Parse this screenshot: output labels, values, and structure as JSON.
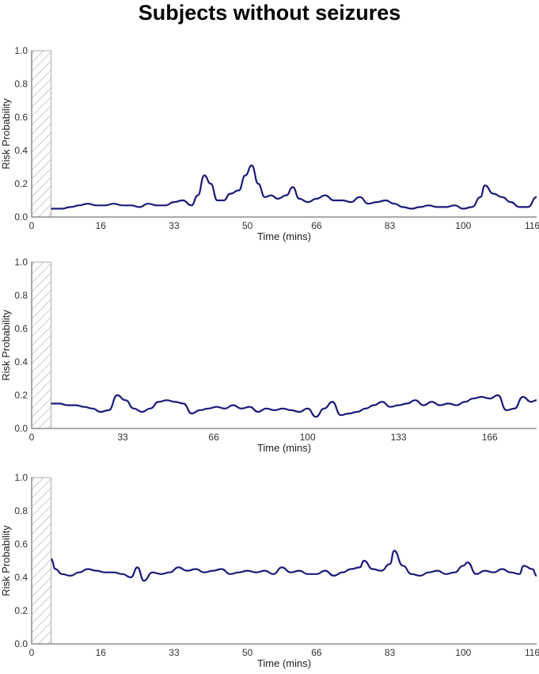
{
  "title": "Subjects without seizures",
  "colors": {
    "line": "#1a1a7a",
    "axis": "#555555",
    "hatch": "#999999"
  },
  "chart_data": [
    {
      "type": "line",
      "xlabel": "Time (mins)",
      "ylabel": "Risk Probability",
      "xlim": [
        0,
        117
      ],
      "ylim": [
        0,
        1.0
      ],
      "hatched_region": [
        0,
        4.5
      ],
      "xticks": [
        0,
        16,
        33,
        50,
        66,
        83,
        100,
        116
      ],
      "yticks": [
        0.0,
        0.2,
        0.4,
        0.6,
        0.8,
        1.0
      ],
      "series": [
        {
          "name": "Risk Probability",
          "x": [
            4.5,
            7,
            9,
            11,
            13,
            15,
            17,
            19,
            21,
            23,
            25,
            27,
            29,
            31,
            33,
            35,
            37,
            38.5,
            40,
            41.5,
            43,
            44.5,
            46,
            48,
            49.5,
            51,
            52.5,
            54,
            55.5,
            57,
            59,
            60.5,
            62,
            64,
            66,
            68,
            70,
            72,
            74,
            76,
            78,
            80,
            82,
            84,
            86,
            88,
            90,
            92,
            94,
            96,
            98,
            100,
            102,
            104,
            105,
            107,
            109,
            111,
            113,
            115,
            117
          ],
          "values": [
            0.05,
            0.05,
            0.06,
            0.07,
            0.08,
            0.07,
            0.07,
            0.08,
            0.07,
            0.07,
            0.06,
            0.08,
            0.07,
            0.07,
            0.09,
            0.1,
            0.07,
            0.13,
            0.25,
            0.2,
            0.1,
            0.1,
            0.14,
            0.16,
            0.25,
            0.31,
            0.2,
            0.12,
            0.13,
            0.11,
            0.13,
            0.18,
            0.11,
            0.09,
            0.11,
            0.13,
            0.1,
            0.1,
            0.09,
            0.12,
            0.08,
            0.09,
            0.1,
            0.08,
            0.06,
            0.05,
            0.06,
            0.07,
            0.06,
            0.06,
            0.07,
            0.05,
            0.06,
            0.12,
            0.19,
            0.14,
            0.12,
            0.09,
            0.06,
            0.06,
            0.12
          ]
        }
      ]
    },
    {
      "type": "line",
      "xlabel": "Time (mins)",
      "ylabel": "Risk Probability",
      "xlim": [
        0,
        183
      ],
      "ylim": [
        0,
        1.0
      ],
      "hatched_region": [
        0,
        7
      ],
      "xticks": [
        0,
        33,
        66,
        100,
        133,
        166
      ],
      "yticks": [
        0.0,
        0.2,
        0.4,
        0.6,
        0.8,
        1.0
      ],
      "series": [
        {
          "name": "Risk Probability",
          "x": [
            7,
            10,
            13,
            16,
            19,
            22,
            25,
            28,
            31,
            34,
            37,
            40,
            43,
            46,
            49,
            52,
            55,
            58,
            61,
            64,
            67,
            70,
            73,
            76,
            79,
            82,
            85,
            88,
            91,
            94,
            97,
            100,
            103,
            106,
            109,
            112,
            115,
            118,
            121,
            124,
            127,
            130,
            133,
            136,
            139,
            142,
            145,
            148,
            151,
            154,
            157,
            160,
            163,
            166,
            169,
            172,
            175,
            178,
            181,
            183
          ],
          "values": [
            0.15,
            0.15,
            0.14,
            0.14,
            0.13,
            0.12,
            0.1,
            0.11,
            0.2,
            0.17,
            0.12,
            0.1,
            0.12,
            0.16,
            0.17,
            0.16,
            0.15,
            0.09,
            0.11,
            0.12,
            0.13,
            0.12,
            0.14,
            0.12,
            0.13,
            0.1,
            0.12,
            0.11,
            0.12,
            0.11,
            0.1,
            0.12,
            0.07,
            0.12,
            0.16,
            0.08,
            0.09,
            0.1,
            0.12,
            0.14,
            0.16,
            0.13,
            0.14,
            0.15,
            0.17,
            0.14,
            0.16,
            0.14,
            0.15,
            0.14,
            0.16,
            0.18,
            0.19,
            0.18,
            0.2,
            0.11,
            0.12,
            0.19,
            0.16,
            0.17
          ]
        }
      ]
    },
    {
      "type": "line",
      "xlabel": "Time (mins)",
      "ylabel": "Risk Probability",
      "xlim": [
        0,
        117
      ],
      "ylim": [
        0,
        1.0
      ],
      "hatched_region": [
        0,
        4.5
      ],
      "xticks": [
        0,
        16,
        33,
        50,
        66,
        83,
        100,
        116
      ],
      "yticks": [
        0.0,
        0.2,
        0.4,
        0.6,
        0.8,
        1.0
      ],
      "series": [
        {
          "name": "Risk Probability",
          "x": [
            4.5,
            5.5,
            7,
            9,
            11,
            13,
            15,
            17,
            19,
            21,
            23,
            24.5,
            26,
            28,
            30,
            32,
            34,
            36,
            38,
            40,
            42,
            44,
            46,
            48,
            50,
            52,
            54,
            56,
            58,
            60,
            62,
            64,
            66,
            68,
            70,
            72,
            74,
            76,
            77,
            79,
            81,
            83,
            84,
            86,
            88,
            90,
            92,
            94,
            96,
            98,
            100,
            101,
            103,
            105,
            107,
            109,
            111,
            113,
            114,
            116,
            117
          ],
          "values": [
            0.51,
            0.45,
            0.42,
            0.41,
            0.43,
            0.45,
            0.44,
            0.43,
            0.43,
            0.42,
            0.4,
            0.46,
            0.38,
            0.43,
            0.42,
            0.43,
            0.46,
            0.44,
            0.45,
            0.43,
            0.44,
            0.45,
            0.42,
            0.43,
            0.44,
            0.43,
            0.44,
            0.42,
            0.46,
            0.43,
            0.44,
            0.42,
            0.42,
            0.44,
            0.41,
            0.43,
            0.45,
            0.46,
            0.5,
            0.45,
            0.44,
            0.48,
            0.56,
            0.47,
            0.42,
            0.41,
            0.43,
            0.44,
            0.42,
            0.43,
            0.47,
            0.49,
            0.42,
            0.44,
            0.43,
            0.45,
            0.43,
            0.42,
            0.47,
            0.45,
            0.41
          ]
        }
      ]
    }
  ]
}
